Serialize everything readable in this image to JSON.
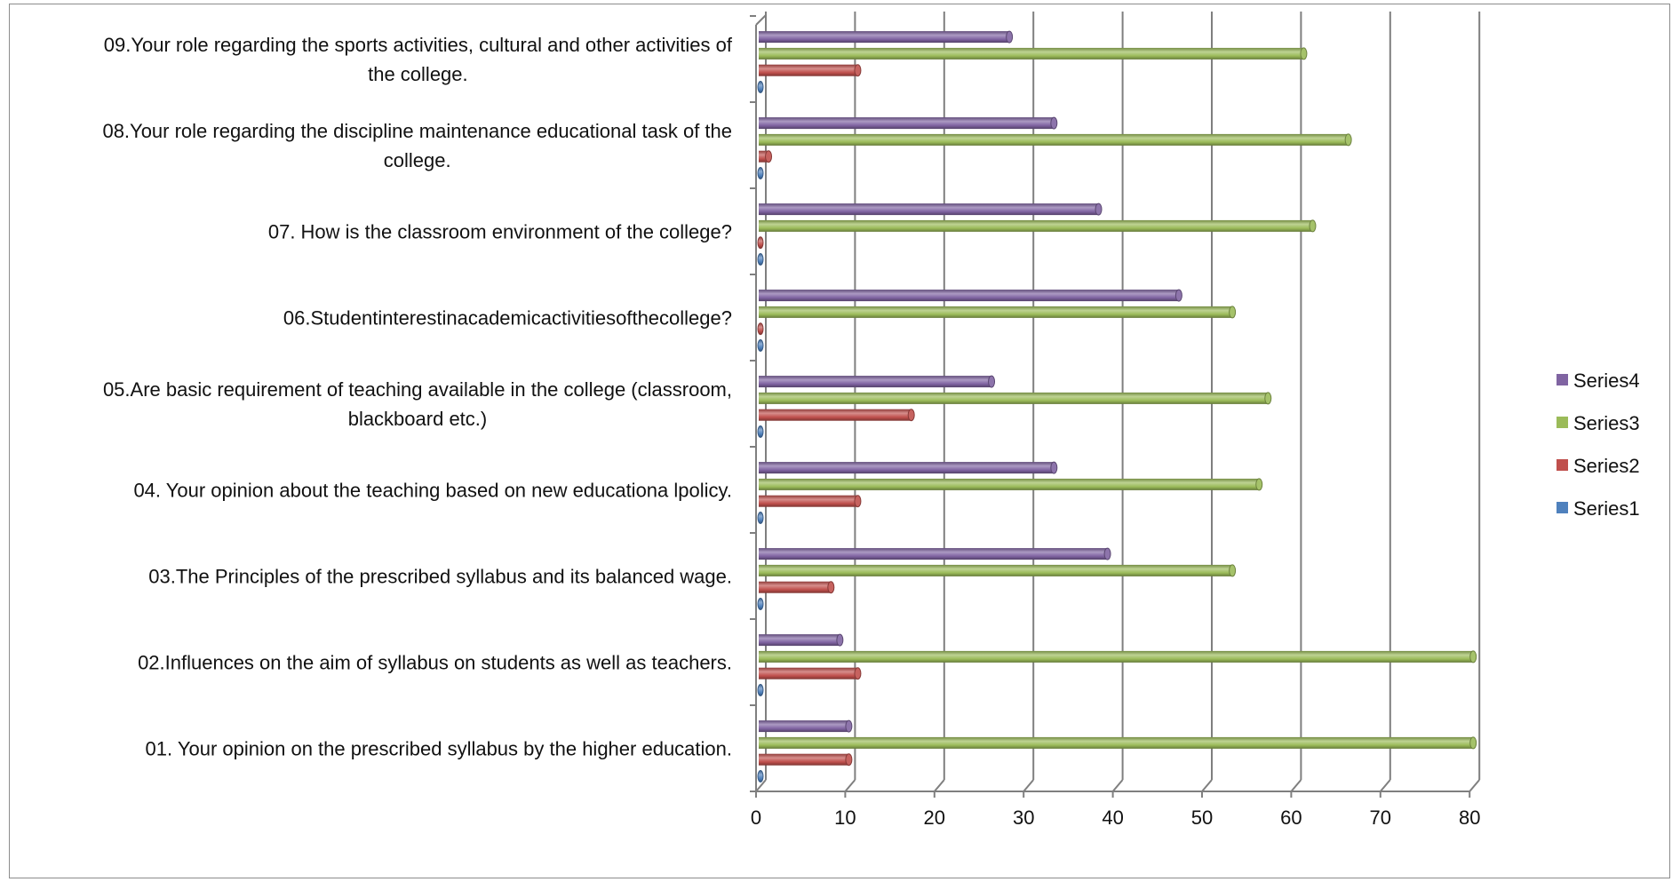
{
  "chart_data": {
    "type": "bar",
    "orientation": "horizontal",
    "style": "3d-cylinder",
    "categories": [
      "01. Your opinion on the prescribed syllabus by the higher education.",
      "02.Influences on the aim of syllabus on students as well as teachers.",
      "03.The Principles of the prescribed syllabus and its balanced wage.",
      "04. Your opinion about the teaching based on new educationa lpolicy.",
      "05.Are basic requirement of teaching available in the college (classroom, blackboard  etc.)",
      "06.Studentinterestinacademicactivitiesofthecollege?",
      "07. How is the classroom environment of the college?",
      "08.Your role regarding the discipline maintenance educational task of the college.",
      "09.Your role regarding the sports activities, cultural and other activities of the college."
    ],
    "category_lines": [
      [
        "01. Your opinion on the prescribed syllabus by the higher education."
      ],
      [
        "02.Influences on the aim of syllabus on students as well as teachers."
      ],
      [
        "03.The Principles of the prescribed syllabus and its balanced wage."
      ],
      [
        "04. Your opinion about the teaching based on new educationa lpolicy."
      ],
      [
        "05.Are basic requirement of teaching available in the college (classroom,",
        "blackboard  etc.)"
      ],
      [
        "06.Studentinterestinacademicactivitiesofthecollege?"
      ],
      [
        "07. How is the classroom environment of the college?"
      ],
      [
        "08.Your role regarding the discipline maintenance educational task of the",
        "college."
      ],
      [
        "09.Your role regarding the sports activities, cultural and other activities of",
        "the college."
      ]
    ],
    "series": [
      {
        "name": "Series1",
        "color": "#4f81bd",
        "values": [
          0,
          0,
          0,
          0,
          0,
          0,
          0,
          0,
          0
        ]
      },
      {
        "name": "Series2",
        "color": "#c0504d",
        "values": [
          10,
          11,
          8,
          11,
          17,
          0,
          0,
          1,
          11
        ]
      },
      {
        "name": "Series3",
        "color": "#9bbb59",
        "values": [
          80,
          80,
          53,
          56,
          57,
          53,
          62,
          66,
          61
        ]
      },
      {
        "name": "Series4",
        "color": "#8064a2",
        "values": [
          10,
          9,
          39,
          33,
          26,
          47,
          38,
          33,
          28
        ]
      }
    ],
    "xlim": [
      0,
      80
    ],
    "x_ticks": [
      "0",
      "10",
      "20",
      "30",
      "40",
      "50",
      "60",
      "70",
      "80"
    ],
    "grid": true,
    "legend": "right",
    "xlabel": "",
    "ylabel": ""
  }
}
